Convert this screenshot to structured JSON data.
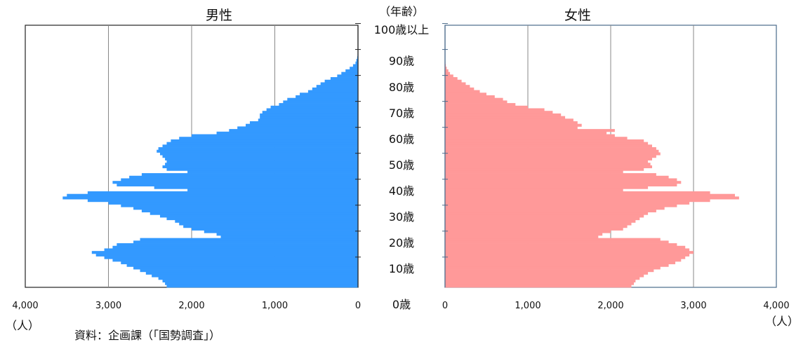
{
  "chart_data": {
    "type": "bar",
    "orientation": "horizontal-pyramid",
    "age_axis_title": "（年齢）",
    "age_tick_labels": [
      "0歳",
      "10歳",
      "20歳",
      "30歳",
      "40歳",
      "50歳",
      "60歳",
      "70歳",
      "80歳",
      "90歳",
      "100歳以上"
    ],
    "source_note": "資料：企画課（「国勢調査」）",
    "unit_label_left": "（人）",
    "unit_label_right": "（人）",
    "xlim": [
      0,
      4000
    ],
    "x_ticks": [
      0,
      1000,
      2000,
      3000,
      4000
    ],
    "x_tick_labels": [
      "0",
      "1,000",
      "2,000",
      "3,000",
      "4,000"
    ],
    "grid": "vertical",
    "ages": [
      0,
      1,
      2,
      3,
      4,
      5,
      6,
      7,
      8,
      9,
      10,
      11,
      12,
      13,
      14,
      15,
      16,
      17,
      18,
      19,
      20,
      21,
      22,
      23,
      24,
      25,
      26,
      27,
      28,
      29,
      30,
      31,
      32,
      33,
      34,
      35,
      36,
      37,
      38,
      39,
      40,
      41,
      42,
      43,
      44,
      45,
      46,
      47,
      48,
      49,
      50,
      51,
      52,
      53,
      54,
      55,
      56,
      57,
      58,
      59,
      60,
      61,
      62,
      63,
      64,
      65,
      66,
      67,
      68,
      69,
      70,
      71,
      72,
      73,
      74,
      75,
      76,
      77,
      78,
      79,
      80,
      81,
      82,
      83,
      84,
      85,
      86,
      87,
      88,
      89,
      90,
      91,
      92,
      93,
      94,
      95,
      96,
      97,
      98,
      99,
      100
    ],
    "series": [
      {
        "name": "男性",
        "color": "#3399ff",
        "values": [
          2300,
          2320,
          2350,
          2400,
          2480,
          2550,
          2620,
          2700,
          2780,
          2850,
          2950,
          3050,
          3150,
          3200,
          3050,
          2950,
          2900,
          2700,
          2620,
          1650,
          1700,
          1850,
          2000,
          2100,
          2150,
          2200,
          2300,
          2380,
          2500,
          2600,
          2700,
          2850,
          3000,
          3250,
          3550,
          3500,
          3250,
          2050,
          2450,
          2900,
          2950,
          2850,
          2750,
          2600,
          2050,
          2300,
          2350,
          2320,
          2300,
          2320,
          2350,
          2380,
          2420,
          2400,
          2350,
          2300,
          2250,
          2150,
          2000,
          1700,
          1550,
          1450,
          1350,
          1300,
          1200,
          1180,
          1180,
          1150,
          1100,
          1050,
          950,
          900,
          850,
          750,
          700,
          600,
          550,
          500,
          450,
          400,
          330,
          250,
          200,
          150,
          100,
          60,
          30,
          20,
          10,
          5,
          3
        ],
        "ages_order": "0-to-90-then-zero"
      },
      {
        "name": "女性",
        "color": "#ff9999",
        "values": [
          2250,
          2280,
          2300,
          2350,
          2400,
          2450,
          2520,
          2600,
          2700,
          2780,
          2850,
          2900,
          2950,
          3000,
          2950,
          2900,
          2800,
          2700,
          2600,
          1850,
          1900,
          2000,
          2150,
          2200,
          2250,
          2300,
          2350,
          2400,
          2450,
          2550,
          2650,
          2800,
          2950,
          3200,
          3550,
          3500,
          3200,
          2150,
          2450,
          2800,
          2850,
          2800,
          2700,
          2550,
          2150,
          2400,
          2500,
          2480,
          2450,
          2500,
          2550,
          2600,
          2580,
          2550,
          2500,
          2450,
          2400,
          2200,
          2050,
          1950,
          2050,
          1600,
          1650,
          1600,
          1550,
          1450,
          1400,
          1300,
          1200,
          1000,
          850,
          750,
          700,
          600,
          500,
          420,
          350,
          300,
          250,
          200,
          150,
          100,
          60,
          40,
          20,
          10,
          5,
          3,
          2,
          1,
          1
        ],
        "ages_order": "0-to-90-then-zero"
      }
    ]
  }
}
